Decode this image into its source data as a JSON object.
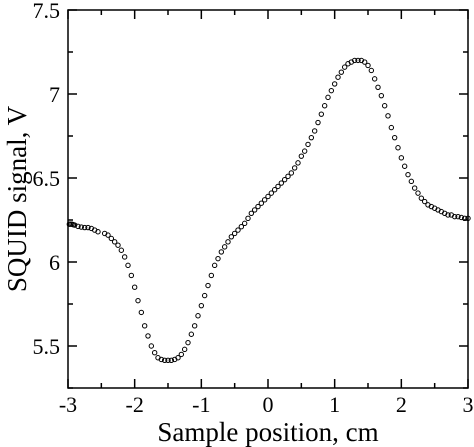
{
  "chart_data": {
    "type": "scatter",
    "title": "",
    "xlabel": "Sample position, cm",
    "ylabel": "SQUID signal, V",
    "xlim": [
      -3,
      3
    ],
    "ylim": [
      5.25,
      7.5
    ],
    "grid": false,
    "legend": "none",
    "marker": "open-circle",
    "color": "#000000",
    "x_ticks": [
      -3,
      -2,
      -1,
      0,
      1,
      2,
      3
    ],
    "x_tick_labels": [
      "-3",
      "-2",
      "-1",
      "0",
      "1",
      "2",
      "3"
    ],
    "y_ticks": [
      5.5,
      6,
      6.5,
      7,
      7.5
    ],
    "y_tick_labels": [
      "5.5",
      "6",
      "6.5",
      "7",
      "7.5"
    ],
    "series": [
      {
        "x": [
          -2.98,
          -2.96,
          -2.94,
          -2.92,
          -2.9,
          -2.85,
          -2.8,
          -2.75,
          -2.7,
          -2.65,
          -2.6,
          -2.55,
          -2.45,
          -2.4,
          -2.35,
          -2.3,
          -2.25,
          -2.2,
          -2.15,
          -2.1,
          -2.05,
          -2.0,
          -1.95,
          -1.9,
          -1.85,
          -1.8,
          -1.75,
          -1.7,
          -1.65,
          -1.6,
          -1.55,
          -1.5,
          -1.45,
          -1.4,
          -1.35,
          -1.3,
          -1.25,
          -1.2,
          -1.15,
          -1.1,
          -1.05,
          -1.0,
          -0.95,
          -0.9,
          -0.85,
          -0.8,
          -0.75,
          -0.7,
          -0.65,
          -0.6,
          -0.55,
          -0.5,
          -0.45,
          -0.4,
          -0.35,
          -0.3,
          -0.25,
          -0.2,
          -0.15,
          -0.1,
          -0.05,
          0.0,
          0.05,
          0.1,
          0.15,
          0.2,
          0.25,
          0.3,
          0.35,
          0.4,
          0.45,
          0.5,
          0.55,
          0.6,
          0.65,
          0.7,
          0.75,
          0.8,
          0.85,
          0.9,
          0.95,
          1.0,
          1.05,
          1.1,
          1.15,
          1.2,
          1.25,
          1.3,
          1.35,
          1.4,
          1.45,
          1.5,
          1.55,
          1.6,
          1.65,
          1.7,
          1.75,
          1.8,
          1.85,
          1.9,
          1.95,
          2.0,
          2.05,
          2.1,
          2.15,
          2.2,
          2.25,
          2.3,
          2.35,
          2.4,
          2.45,
          2.5,
          2.55,
          2.6,
          2.65,
          2.7,
          2.75,
          2.8,
          2.85,
          2.9,
          2.95,
          3.0
        ],
        "y": [
          6.225,
          6.225,
          6.225,
          6.222,
          6.22,
          6.212,
          6.208,
          6.205,
          6.205,
          6.2,
          6.19,
          6.18,
          6.17,
          6.16,
          6.14,
          6.12,
          6.1,
          6.07,
          6.03,
          5.98,
          5.92,
          5.85,
          5.77,
          5.7,
          5.62,
          5.56,
          5.5,
          5.46,
          5.43,
          5.42,
          5.415,
          5.415,
          5.415,
          5.42,
          5.43,
          5.45,
          5.48,
          5.52,
          5.57,
          5.62,
          5.68,
          5.74,
          5.8,
          5.86,
          5.92,
          5.98,
          6.02,
          6.06,
          6.09,
          6.12,
          6.15,
          6.17,
          6.19,
          6.21,
          6.23,
          6.26,
          6.29,
          6.31,
          6.33,
          6.35,
          6.37,
          6.39,
          6.41,
          6.43,
          6.45,
          6.47,
          6.49,
          6.51,
          6.53,
          6.56,
          6.59,
          6.63,
          6.66,
          6.7,
          6.74,
          6.78,
          6.83,
          6.88,
          6.93,
          6.98,
          7.02,
          7.06,
          7.1,
          7.13,
          7.16,
          7.18,
          7.19,
          7.2,
          7.2,
          7.2,
          7.19,
          7.17,
          7.14,
          7.09,
          7.04,
          6.99,
          6.93,
          6.87,
          6.8,
          6.74,
          6.68,
          6.62,
          6.57,
          6.52,
          6.48,
          6.44,
          6.41,
          6.38,
          6.36,
          6.34,
          6.33,
          6.32,
          6.31,
          6.3,
          6.29,
          6.28,
          6.28,
          6.27,
          6.27,
          6.265,
          6.26,
          6.26
        ]
      }
    ]
  }
}
